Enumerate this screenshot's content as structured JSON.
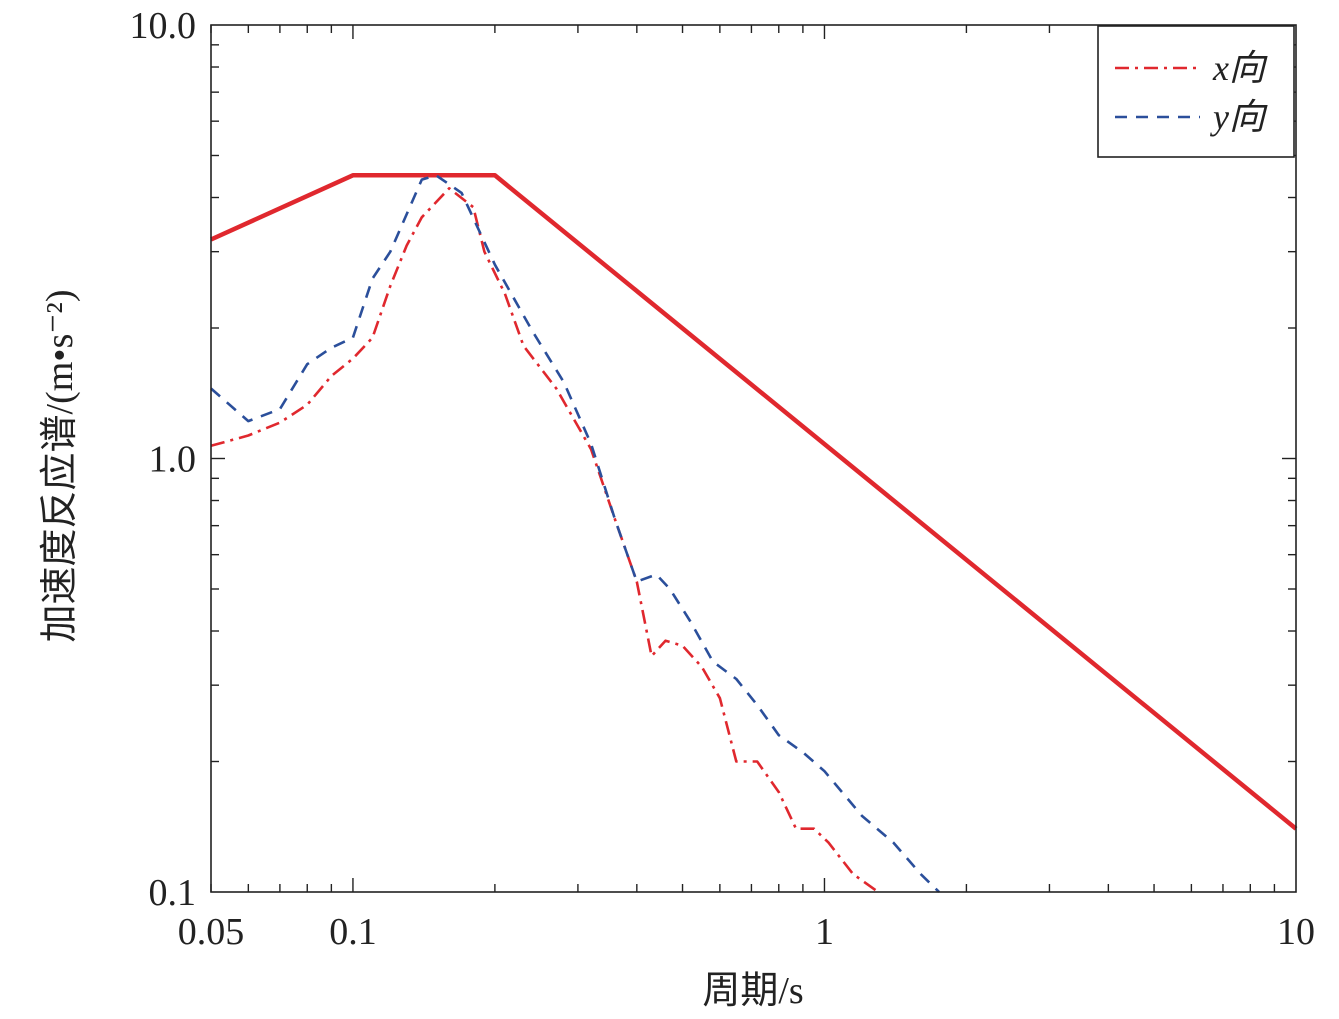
{
  "chart_data": {
    "type": "line",
    "xscale": "log",
    "yscale": "log",
    "xlim": [
      0.05,
      10
    ],
    "ylim": [
      0.1,
      10.0
    ],
    "xlabel": "周期/s",
    "ylabel": "加速度反应谱/(m•s⁻²)",
    "x_ticks": [
      {
        "value": 0.05,
        "label": "0.05"
      },
      {
        "value": 0.1,
        "label": "0.1"
      },
      {
        "value": 1,
        "label": "1"
      },
      {
        "value": 10,
        "label": "10"
      }
    ],
    "y_ticks": [
      {
        "value": 0.1,
        "label": "0.1"
      },
      {
        "value": 1.0,
        "label": "1.0"
      },
      {
        "value": 10.0,
        "label": "10.0"
      }
    ],
    "legend_position": "top-right",
    "series": [
      {
        "name": "",
        "role": "design spectrum",
        "color": "#e0282e",
        "style": "solid",
        "points": [
          [
            0.05,
            3.2
          ],
          [
            0.1,
            4.5
          ],
          [
            0.2,
            4.5
          ],
          [
            10,
            0.14
          ]
        ]
      },
      {
        "name": "x向",
        "color": "#e0282e",
        "style": "dashdot",
        "points": [
          [
            0.05,
            1.07
          ],
          [
            0.06,
            1.13
          ],
          [
            0.07,
            1.21
          ],
          [
            0.08,
            1.33
          ],
          [
            0.09,
            1.55
          ],
          [
            0.1,
            1.7
          ],
          [
            0.11,
            1.9
          ],
          [
            0.12,
            2.5
          ],
          [
            0.13,
            3.1
          ],
          [
            0.14,
            3.6
          ],
          [
            0.16,
            4.2
          ],
          [
            0.18,
            3.8
          ],
          [
            0.19,
            3.0
          ],
          [
            0.21,
            2.4
          ],
          [
            0.23,
            1.82
          ],
          [
            0.27,
            1.45
          ],
          [
            0.32,
            1.05
          ],
          [
            0.36,
            0.72
          ],
          [
            0.4,
            0.52
          ],
          [
            0.43,
            0.35
          ],
          [
            0.46,
            0.38
          ],
          [
            0.5,
            0.37
          ],
          [
            0.55,
            0.33
          ],
          [
            0.6,
            0.28
          ],
          [
            0.65,
            0.2
          ],
          [
            0.72,
            0.2
          ],
          [
            0.8,
            0.17
          ],
          [
            0.87,
            0.14
          ],
          [
            0.95,
            0.14
          ],
          [
            1.02,
            0.13
          ],
          [
            1.15,
            0.11
          ],
          [
            1.3,
            0.1
          ]
        ]
      },
      {
        "name": "y向",
        "color": "#2b4f9b",
        "style": "dashed",
        "points": [
          [
            0.05,
            1.45
          ],
          [
            0.06,
            1.22
          ],
          [
            0.07,
            1.3
          ],
          [
            0.08,
            1.65
          ],
          [
            0.09,
            1.8
          ],
          [
            0.1,
            1.9
          ],
          [
            0.11,
            2.6
          ],
          [
            0.12,
            3.0
          ],
          [
            0.14,
            4.4
          ],
          [
            0.15,
            4.5
          ],
          [
            0.17,
            4.1
          ],
          [
            0.2,
            2.8
          ],
          [
            0.24,
            1.97
          ],
          [
            0.28,
            1.5
          ],
          [
            0.32,
            1.08
          ],
          [
            0.36,
            0.72
          ],
          [
            0.4,
            0.52
          ],
          [
            0.44,
            0.54
          ],
          [
            0.47,
            0.5
          ],
          [
            0.52,
            0.42
          ],
          [
            0.58,
            0.34
          ],
          [
            0.65,
            0.31
          ],
          [
            0.72,
            0.27
          ],
          [
            0.8,
            0.23
          ],
          [
            0.9,
            0.21
          ],
          [
            1.0,
            0.19
          ],
          [
            1.2,
            0.15
          ],
          [
            1.4,
            0.13
          ],
          [
            1.6,
            0.11
          ],
          [
            1.75,
            0.1
          ]
        ]
      }
    ]
  }
}
